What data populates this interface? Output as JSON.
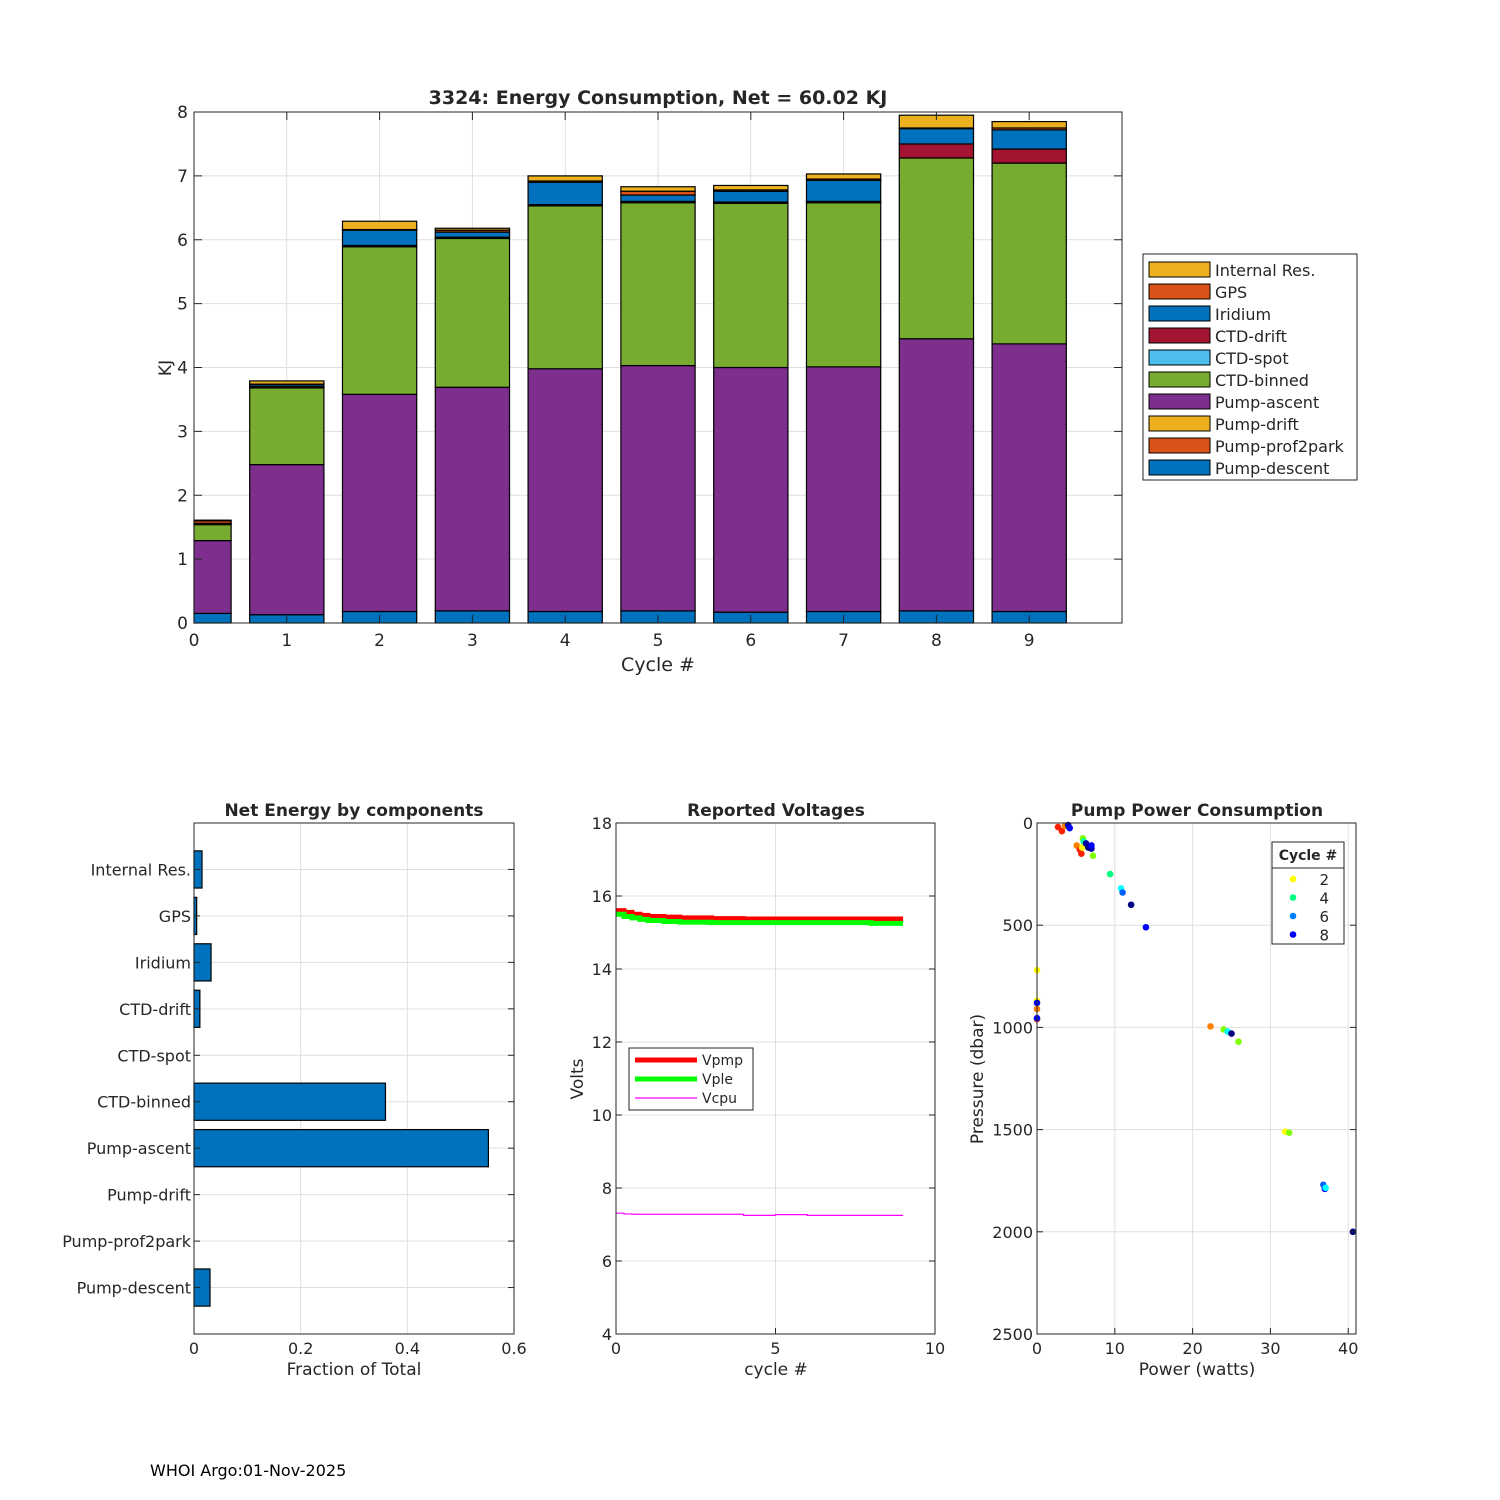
{
  "footer": "WHOI Argo:01-Nov-2025",
  "chart_data": [
    {
      "id": "energy",
      "type": "bar",
      "stacked": true,
      "title": "3324: Energy Consumption,  Net =  60.02 KJ",
      "xlabel": "Cycle #",
      "ylabel": "KJ",
      "xlim": [
        0,
        10
      ],
      "ylim": [
        0,
        8
      ],
      "xticks": [
        0,
        1,
        2,
        3,
        4,
        5,
        6,
        7,
        8,
        9
      ],
      "yticks": [
        0,
        1,
        2,
        3,
        4,
        5,
        6,
        7,
        8
      ],
      "grid": true,
      "legend_position": "right",
      "categories": [
        0,
        1,
        2,
        3,
        4,
        5,
        6,
        7,
        8,
        9
      ],
      "series": [
        {
          "name": "Pump-descent",
          "color": "#0072BD",
          "values": [
            0.15,
            0.13,
            0.18,
            0.19,
            0.18,
            0.19,
            0.17,
            0.18,
            0.19,
            0.18
          ]
        },
        {
          "name": "Pump-prof2park",
          "color": "#D95319",
          "values": [
            0,
            0,
            0,
            0,
            0,
            0,
            0,
            0,
            0,
            0
          ]
        },
        {
          "name": "Pump-drift",
          "color": "#EDB120",
          "values": [
            0,
            0,
            0,
            0,
            0,
            0,
            0,
            0,
            0,
            0
          ]
        },
        {
          "name": "Pump-ascent",
          "color": "#7E2F8E",
          "values": [
            1.14,
            2.35,
            3.4,
            3.5,
            3.8,
            3.84,
            3.83,
            3.83,
            4.26,
            4.19
          ]
        },
        {
          "name": "CTD-binned",
          "color": "#77AC30",
          "values": [
            0.25,
            1.2,
            2.31,
            2.33,
            2.55,
            2.55,
            2.57,
            2.57,
            2.83,
            2.83
          ]
        },
        {
          "name": "CTD-spot",
          "color": "#4DBEEE",
          "values": [
            0,
            0,
            0,
            0,
            0,
            0,
            0,
            0,
            0,
            0
          ]
        },
        {
          "name": "CTD-drift",
          "color": "#A2142F",
          "values": [
            0.01,
            0.02,
            0.02,
            0.02,
            0.02,
            0.02,
            0.02,
            0.02,
            0.22,
            0.22
          ]
        },
        {
          "name": "Iridium",
          "color": "#0072BD",
          "values": [
            0.01,
            0.03,
            0.24,
            0.08,
            0.35,
            0.1,
            0.17,
            0.33,
            0.24,
            0.3
          ]
        },
        {
          "name": "GPS",
          "color": "#D95319",
          "values": [
            0.04,
            0.01,
            0.01,
            0.03,
            0.02,
            0.06,
            0.02,
            0.02,
            0.01,
            0.03
          ]
        },
        {
          "name": "Internal Res.",
          "color": "#EDB120",
          "values": [
            0.01,
            0.05,
            0.13,
            0.03,
            0.08,
            0.07,
            0.07,
            0.08,
            0.2,
            0.1
          ]
        }
      ]
    },
    {
      "id": "components",
      "type": "bar",
      "orientation": "horizontal",
      "title": "Net Energy by components",
      "xlabel": "Fraction of Total",
      "ylabel": "",
      "xlim": [
        0,
        0.6
      ],
      "xticks": [
        0,
        0.2,
        0.4,
        0.6
      ],
      "xticklabels": [
        "0",
        "0.2",
        "0.4",
        "0.6"
      ],
      "grid": true,
      "color": "#0072BD",
      "categories": [
        "Internal Res.",
        "GPS",
        "Iridium",
        "CTD-drift",
        "CTD-spot",
        "CTD-binned",
        "Pump-ascent",
        "Pump-drift",
        "Pump-prof2park",
        "Pump-descent"
      ],
      "values": [
        0.015,
        0.005,
        0.032,
        0.011,
        0.0,
        0.359,
        0.552,
        0.0,
        0.0,
        0.03
      ]
    },
    {
      "id": "voltages",
      "type": "line",
      "title": "Reported Voltages",
      "xlabel": "cycle #",
      "ylabel": "Volts",
      "xlim": [
        0,
        10
      ],
      "ylim": [
        4,
        18
      ],
      "xticks": [
        0,
        5,
        10
      ],
      "yticks": [
        4,
        6,
        8,
        10,
        12,
        14,
        16,
        18
      ],
      "grid": true,
      "legend_position": "center-left",
      "x": [
        0,
        0.25,
        0.5,
        0.75,
        1.0,
        1.5,
        2.0,
        3.0,
        4.0,
        5.0,
        6.0,
        7.0,
        8.0,
        9.0
      ],
      "series": [
        {
          "name": "Vpmp",
          "color": "#FF0000",
          "width": "thick",
          "values": [
            15.6,
            15.55,
            15.5,
            15.47,
            15.44,
            15.42,
            15.4,
            15.38,
            15.37,
            15.37,
            15.37,
            15.37,
            15.37,
            15.37
          ]
        },
        {
          "name": "Vple",
          "color": "#00FF00",
          "width": "thick",
          "values": [
            15.5,
            15.44,
            15.4,
            15.36,
            15.33,
            15.3,
            15.28,
            15.27,
            15.27,
            15.27,
            15.27,
            15.27,
            15.25,
            15.25
          ]
        },
        {
          "name": "Vcpu",
          "color": "#FF00FF",
          "width": "thin",
          "values": [
            7.31,
            7.29,
            7.28,
            7.28,
            7.28,
            7.28,
            7.28,
            7.28,
            7.25,
            7.27,
            7.25,
            7.25,
            7.25,
            7.25
          ]
        }
      ]
    },
    {
      "id": "pump",
      "type": "scatter",
      "title": "Pump Power Consumption",
      "xlabel": "Power (watts)",
      "ylabel": "Pressure (dbar)",
      "xlim": [
        0,
        41
      ],
      "ylim": [
        2500,
        0
      ],
      "y_reversed": true,
      "xticks": [
        0,
        10,
        20,
        30,
        40
      ],
      "yticks": [
        0,
        500,
        1000,
        1500,
        2000,
        2500
      ],
      "grid": true,
      "legend_title": "Cycle #",
      "legend_position": "top-right",
      "legend_entries": [
        {
          "label": "2",
          "color": "#FFFF00"
        },
        {
          "label": "4",
          "color": "#00FF80"
        },
        {
          "label": "6",
          "color": "#0080FF"
        },
        {
          "label": "8",
          "color": "#0000FF"
        }
      ],
      "points": [
        {
          "x": 2.7,
          "y": 20,
          "c": "#FF2000"
        },
        {
          "x": 3.2,
          "y": 40,
          "c": "#FF2000"
        },
        {
          "x": 3.6,
          "y": 15,
          "c": "#FF8000"
        },
        {
          "x": 4.0,
          "y": 10,
          "c": "#0000A0"
        },
        {
          "x": 4.2,
          "y": 25,
          "c": "#0000FF"
        },
        {
          "x": 5.1,
          "y": 110,
          "c": "#FF8000"
        },
        {
          "x": 5.5,
          "y": 130,
          "c": "#FF2000"
        },
        {
          "x": 5.7,
          "y": 150,
          "c": "#FF2000"
        },
        {
          "x": 5.8,
          "y": 120,
          "c": "#FFFF00"
        },
        {
          "x": 5.9,
          "y": 75,
          "c": "#80FF00"
        },
        {
          "x": 6.0,
          "y": 90,
          "c": "#00FFA0"
        },
        {
          "x": 6.3,
          "y": 100,
          "c": "#0000A0"
        },
        {
          "x": 6.6,
          "y": 120,
          "c": "#000080"
        },
        {
          "x": 7.0,
          "y": 125,
          "c": "#0000A0"
        },
        {
          "x": 7.2,
          "y": 160,
          "c": "#80FF00"
        },
        {
          "x": 7.0,
          "y": 110,
          "c": "#0000FF"
        },
        {
          "x": 9.4,
          "y": 250,
          "c": "#00FF80"
        },
        {
          "x": 10.8,
          "y": 320,
          "c": "#00FFFF"
        },
        {
          "x": 11.0,
          "y": 340,
          "c": "#0060FF"
        },
        {
          "x": 12.1,
          "y": 400,
          "c": "#000080"
        },
        {
          "x": 14.0,
          "y": 510,
          "c": "#0000FF"
        },
        {
          "x": 0,
          "y": 720,
          "c": "#FFFF00"
        },
        {
          "x": 0,
          "y": 870,
          "c": "#FFFF00"
        },
        {
          "x": 0,
          "y": 880,
          "c": "#0000FF"
        },
        {
          "x": 0,
          "y": 910,
          "c": "#FF8000"
        },
        {
          "x": 0,
          "y": 960,
          "c": "#FF4000"
        },
        {
          "x": 0,
          "y": 955,
          "c": "#0000FF"
        },
        {
          "x": 22.3,
          "y": 995,
          "c": "#FF8000"
        },
        {
          "x": 24.0,
          "y": 1010,
          "c": "#80FF00"
        },
        {
          "x": 24.5,
          "y": 1020,
          "c": "#00FFFF"
        },
        {
          "x": 25.0,
          "y": 1030,
          "c": "#000080"
        },
        {
          "x": 25.9,
          "y": 1070,
          "c": "#80FF00"
        },
        {
          "x": 31.9,
          "y": 1510,
          "c": "#FFFF00"
        },
        {
          "x": 32.4,
          "y": 1515,
          "c": "#80FF00"
        },
        {
          "x": 36.8,
          "y": 1770,
          "c": "#0060FF"
        },
        {
          "x": 37.0,
          "y": 1790,
          "c": "#0000FF"
        },
        {
          "x": 37.1,
          "y": 1785,
          "c": "#00FFFF"
        },
        {
          "x": 40.6,
          "y": 2000,
          "c": "#000080"
        }
      ]
    }
  ]
}
